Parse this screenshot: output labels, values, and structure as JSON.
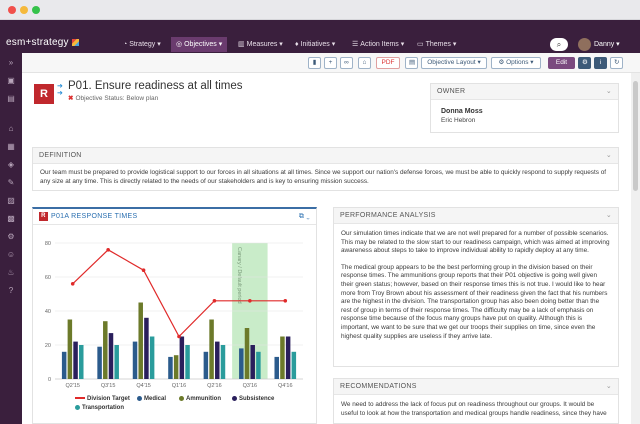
{
  "app": {
    "logo": "esm+strategy",
    "user": "Danny"
  },
  "nav": [
    {
      "label": "Strategy",
      "icon": "gauge-icon"
    },
    {
      "label": "Objectives",
      "icon": "target-icon",
      "active": true
    },
    {
      "label": "Measures",
      "icon": "chart-icon"
    },
    {
      "label": "Initiatives",
      "icon": "pin-icon"
    },
    {
      "label": "Action Items",
      "icon": "list-icon"
    },
    {
      "label": "Themes",
      "icon": "folder-icon"
    }
  ],
  "toolbar": {
    "pdf": "PDF",
    "layout": "Objective Layout",
    "options": "Options",
    "edit": "Edit"
  },
  "objective": {
    "badge": "R",
    "title": "P01. Ensure readiness at all times",
    "status": "Objective Status: Below plan"
  },
  "owner": {
    "heading": "OWNER",
    "name": "Donna Moss",
    "other": "Eric Hebron"
  },
  "definition": {
    "heading": "DEFINITION",
    "text": "Our team must be prepared to provide logistical support to our forces in all situations at all times. Since we support our nation's defense forces, we must be able to quickly respond to supply requests of any size at any time. This is directly related to the needs of our stakeholders and is key to ensuring mission success."
  },
  "chart_panel": {
    "badge": "R",
    "title": "P01A RESPONSE TIMES"
  },
  "chart_data": {
    "type": "bar",
    "categories": [
      "Q2'15",
      "Q3'15",
      "Q4'15",
      "Q1'16",
      "Q2'16",
      "Q3'16",
      "Q4'16"
    ],
    "ylim": [
      0,
      80
    ],
    "yticks": [
      0,
      20,
      40,
      60,
      80
    ],
    "band_label": "Canary / Default period",
    "band_category": "Q3'16",
    "series": [
      {
        "name": "Medical",
        "type": "bar",
        "color": "#2b5b8c",
        "values": [
          16,
          19,
          22,
          13,
          16,
          18,
          13
        ]
      },
      {
        "name": "Ammunition",
        "type": "bar",
        "color": "#6c7a2a",
        "values": [
          35,
          34,
          45,
          14,
          35,
          30,
          25
        ]
      },
      {
        "name": "Subsistence",
        "type": "bar",
        "color": "#2a1f5c",
        "values": [
          22,
          27,
          36,
          25,
          22,
          20,
          25
        ]
      },
      {
        "name": "Transportation",
        "type": "bar",
        "color": "#2a9c9c",
        "values": [
          20,
          20,
          25,
          20,
          20,
          16,
          16
        ]
      },
      {
        "name": "Division Target",
        "type": "line",
        "color": "#e02a2a",
        "values": [
          56,
          76,
          64,
          25,
          46,
          46,
          46
        ]
      }
    ]
  },
  "performance": {
    "heading": "PERFORMANCE ANALYSIS",
    "paragraphs": [
      "Our simulation times indicate that we are not well prepared for a number of possible scenarios. This may be related to the slow start to our readiness campaign, which was aimed at improving awareness about steps to take to improve individual ability to rapidly deploy at any time.",
      "The medical group appears to be the best performing group in the division based on their response times. The ammunitions group reports that their P01 objective is going well given their green status; however, based on their response times this is not true. I would like to hear more from Troy Brown about his assessment of their readiness given the fact that his numbers are the highest in the division. The transportation group has also been doing better than the rest of group in terms of their response times. The difficulty may be a lack of emphasis on response time because of the focus many groups have put on quality. Although this is important, we want to be sure that we get our troops their supplies on time, since even the highest quality supplies are useless if they arrive late."
    ]
  },
  "recommendations": {
    "heading": "RECOMMENDATIONS",
    "text": "We need to address the lack of focus put on readiness throughout our groups. It would be useful to look at how the transportation and medical groups handle readiness, since they have"
  }
}
